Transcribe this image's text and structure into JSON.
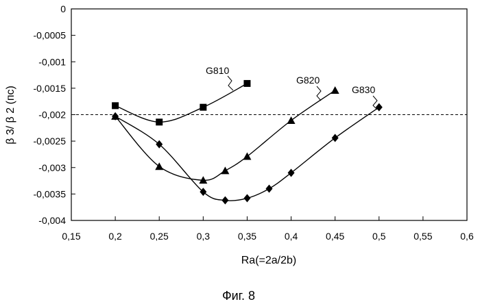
{
  "chart_data": {
    "type": "line",
    "title": "",
    "xlabel": "Ra(=2a/2b)",
    "ylabel": "β 3/ β 2 (пс)",
    "caption": "Фиг. 8",
    "xlim": [
      0.15,
      0.6
    ],
    "ylim": [
      -0.004,
      0
    ],
    "x_tick_labels": [
      "0,15",
      "0,2",
      "0,25",
      "0,3",
      "0,35",
      "0,4",
      "0,45",
      "0,5",
      "0,55",
      "0,6"
    ],
    "x_tick_values": [
      0.15,
      0.2,
      0.25,
      0.3,
      0.35,
      0.4,
      0.45,
      0.5,
      0.55,
      0.6
    ],
    "y_tick_labels": [
      "0",
      "-0,0005",
      "-0,001",
      "-0,0015",
      "-0,002",
      "-0,0025",
      "-0,003",
      "-0,0035",
      "-0,004"
    ],
    "y_tick_values": [
      0,
      -0.0005,
      -0.001,
      -0.0015,
      -0.002,
      -0.0025,
      -0.003,
      -0.0035,
      -0.004
    ],
    "grid": false,
    "reference_line": {
      "y": -0.002,
      "style": "dashed"
    },
    "series": [
      {
        "name": "G810",
        "marker": "square",
        "x": [
          0.2,
          0.25,
          0.3,
          0.35
        ],
        "y": [
          -0.00183,
          -0.00214,
          -0.00186,
          -0.00141
        ]
      },
      {
        "name": "G820",
        "marker": "triangle",
        "x": [
          0.2,
          0.25,
          0.3,
          0.325,
          0.35,
          0.4,
          0.45
        ],
        "y": [
          -0.00203,
          -0.00298,
          -0.00324,
          -0.00306,
          -0.00279,
          -0.00211,
          -0.00154
        ]
      },
      {
        "name": "G830",
        "marker": "diamond",
        "x": [
          0.2,
          0.25,
          0.3,
          0.325,
          0.35,
          0.375,
          0.4,
          0.45,
          0.5
        ],
        "y": [
          -0.00203,
          -0.00256,
          -0.00346,
          -0.00362,
          -0.00358,
          -0.0034,
          -0.0031,
          -0.00244,
          -0.00186
        ]
      }
    ]
  }
}
